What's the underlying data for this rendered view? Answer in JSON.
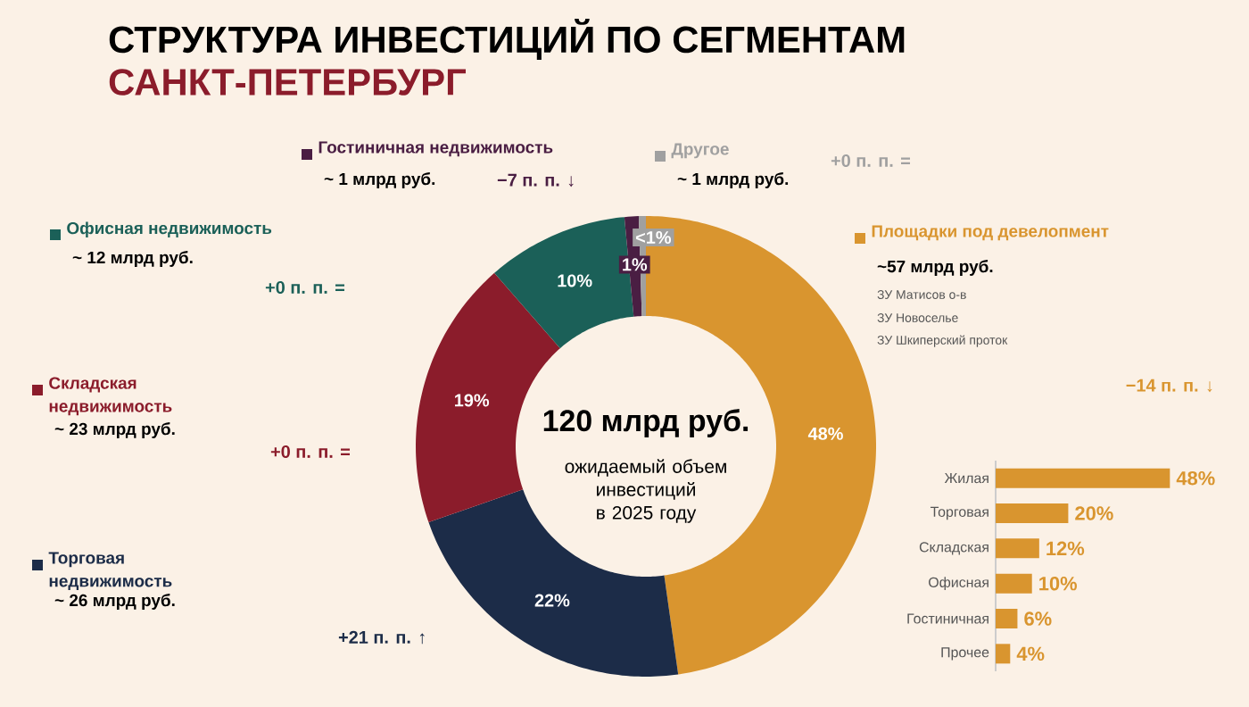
{
  "chart_data": [
    {
      "type": "donut",
      "title": "СТРУКТУРА ИНВЕСТИЦИЙ ПО СЕГМЕНТАМ",
      "subtitle": "САНКТ-ПЕТЕРБУРГ",
      "categories": [
        "Площадки под девелопмент",
        "Торговая недвижимость",
        "Складская недвижимость",
        "Офисная недвижимость",
        "Гостиничная недвижимость",
        "Другое"
      ],
      "values": [
        48,
        22,
        19,
        10,
        1,
        0.5
      ],
      "colors": [
        "#d9952f",
        "#1c2c48",
        "#8b1c2b",
        "#1b6058",
        "#4a1e43",
        "#a0a0a0"
      ],
      "value_labels": [
        "48%",
        "22%",
        "19%",
        "10%",
        "1%",
        "<1%"
      ],
      "legend": "left",
      "annotations": [
        "~57 млрд руб.",
        "ЗУ Матисов о-в",
        "ЗУ Новоселье",
        "ЗУ Шкиперский проток",
        "−14 п. п. ↓",
        "~ 26 млрд руб.",
        "+21 п. п. ↑",
        "~ 23 млрд руб.",
        "+0 п. п. =",
        "~ 12 млрд руб.",
        "+0 п. п. =",
        "~ 1 млрд руб.",
        "−7 п. п. ↓",
        "~ 1 млрд руб.",
        "+0 п. п. =",
        "120 млрд руб.",
        "ожидаемый объем инвестиций в 2025 году"
      ]
    },
    {
      "type": "bar",
      "orientation": "horizontal",
      "categories": [
        "Жилая",
        "Торговая",
        "Складская",
        "Офисная",
        "Гостиничная",
        "Прочее"
      ],
      "values": [
        48,
        20,
        12,
        10,
        6,
        4
      ],
      "value_labels": [
        "48%",
        "20%",
        "12%",
        "10%",
        "6%",
        "4%"
      ],
      "color": "#d9952f"
    }
  ]
}
